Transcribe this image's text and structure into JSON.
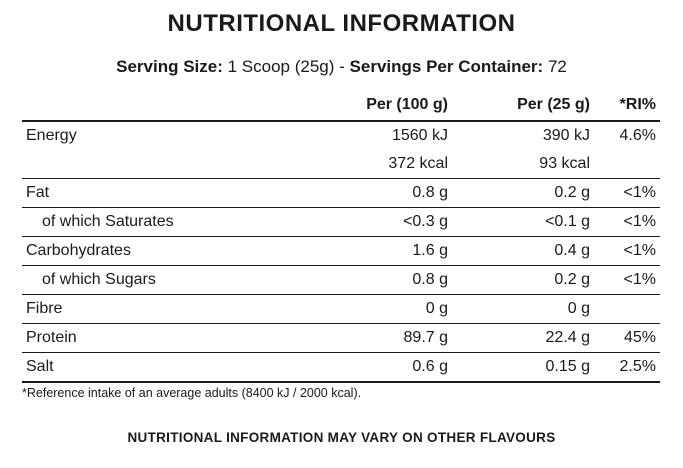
{
  "title": "NUTRITIONAL INFORMATION",
  "serving": {
    "size_label": "Serving Size:",
    "size_value": "1 Scoop (25g)",
    "separator": "-",
    "per_container_label": "Servings Per Container:",
    "per_container_value": "72"
  },
  "headers": {
    "nutrient": "",
    "per100": "Per (100 g)",
    "per25": "Per (25 g)",
    "ri": "*RI%"
  },
  "rows": [
    {
      "label": "Energy",
      "per100": "1560 kJ",
      "per25": "390 kJ",
      "ri": "4.6%"
    },
    {
      "label": "",
      "per100": "372 kcal",
      "per25": "93 kcal",
      "ri": ""
    },
    {
      "label": "Fat",
      "per100": "0.8 g",
      "per25": "0.2 g",
      "ri": "<1%"
    },
    {
      "label": "of which Saturates",
      "per100": "<0.3 g",
      "per25": "<0.1 g",
      "ri": "<1%"
    },
    {
      "label": "Carbohydrates",
      "per100": "1.6 g",
      "per25": "0.4 g",
      "ri": "<1%"
    },
    {
      "label": "of which Sugars",
      "per100": "0.8 g",
      "per25": "0.2 g",
      "ri": "<1%"
    },
    {
      "label": "Fibre",
      "per100": "0 g",
      "per25": "0 g",
      "ri": ""
    },
    {
      "label": "Protein",
      "per100": "89.7 g",
      "per25": "22.4 g",
      "ri": "45%"
    },
    {
      "label": "Salt",
      "per100": "0.6 g",
      "per25": "0.15 g",
      "ri": "2.5%"
    }
  ],
  "footnote": "*Reference intake of an average adults (8400 kJ / 2000 kcal).",
  "disclaimer": "NUTRITIONAL INFORMATION MAY VARY ON OTHER FLAVOURS"
}
